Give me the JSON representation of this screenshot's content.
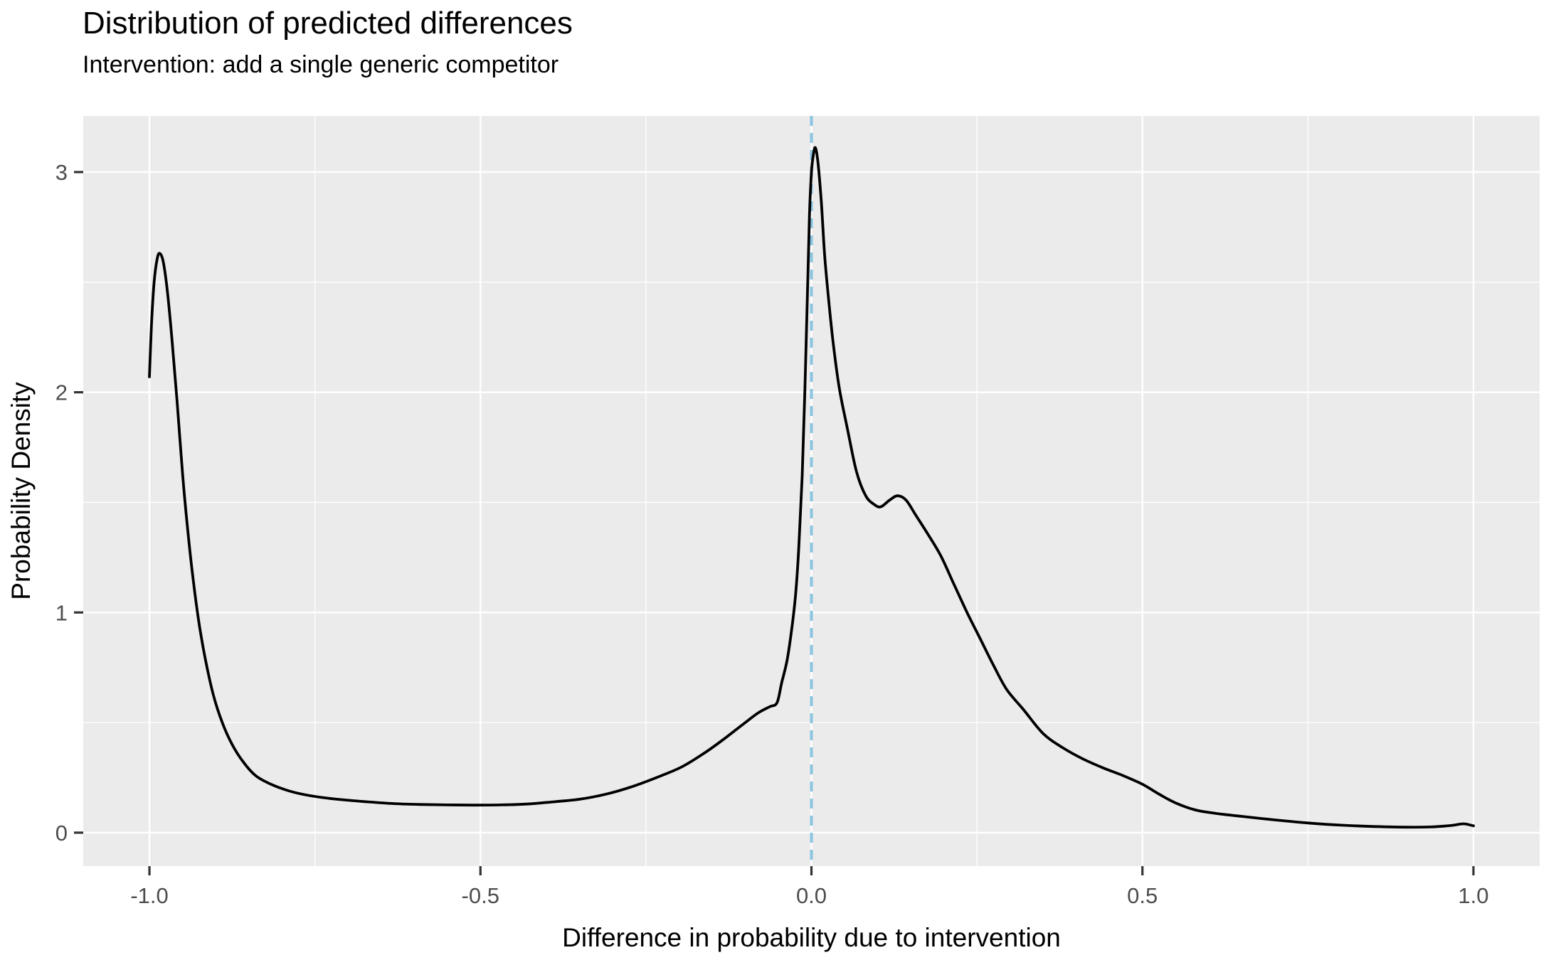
{
  "chart_data": {
    "type": "line",
    "subtype": "density",
    "title": "Distribution of predicted differences",
    "subtitle": "Intervention: add a single generic competitor",
    "xlabel": "Difference in probability due to intervention",
    "ylabel": "Probability Density",
    "xlim": [
      -1.1,
      1.1
    ],
    "ylim": [
      -0.152,
      3.255
    ],
    "x_ticks": [
      -1.0,
      -0.5,
      0.0,
      0.5,
      1.0
    ],
    "x_tick_labels": [
      "-1.0",
      "-0.5",
      "0.0",
      "0.5",
      "1.0"
    ],
    "y_ticks": [
      0,
      1,
      2,
      3
    ],
    "y_tick_labels": [
      "0",
      "1",
      "2",
      "3"
    ],
    "x_minor": [
      -0.75,
      -0.25,
      0.25,
      0.75
    ],
    "y_minor": [
      0.5,
      1.5,
      2.5
    ],
    "grid": true,
    "legend_position": "none",
    "panel_bg": "#EBEBEB",
    "grid_color": "#FFFFFF",
    "tick_label_color": "#4D4D4D",
    "tick_mark_color": "#333333",
    "axis_title_color": "#000000",
    "line_color": "#000000",
    "vline": {
      "x": 0.0,
      "style": "dashed",
      "color": "#89C4E1"
    },
    "series": [
      {
        "name": "predicted-difference-density",
        "points": [
          [
            -1.0,
            2.07
          ],
          [
            -0.997,
            2.3
          ],
          [
            -0.993,
            2.5
          ],
          [
            -0.988,
            2.61
          ],
          [
            -0.984,
            2.63
          ],
          [
            -0.979,
            2.59
          ],
          [
            -0.973,
            2.46
          ],
          [
            -0.966,
            2.24
          ],
          [
            -0.958,
            1.95
          ],
          [
            -0.95,
            1.63
          ],
          [
            -0.942,
            1.37
          ],
          [
            -0.934,
            1.15
          ],
          [
            -0.925,
            0.95
          ],
          [
            -0.915,
            0.78
          ],
          [
            -0.903,
            0.62
          ],
          [
            -0.89,
            0.5
          ],
          [
            -0.875,
            0.4
          ],
          [
            -0.858,
            0.32
          ],
          [
            -0.84,
            0.26
          ],
          [
            -0.82,
            0.225
          ],
          [
            -0.795,
            0.195
          ],
          [
            -0.77,
            0.175
          ],
          [
            -0.74,
            0.16
          ],
          [
            -0.71,
            0.15
          ],
          [
            -0.67,
            0.14
          ],
          [
            -0.63,
            0.132
          ],
          [
            -0.59,
            0.128
          ],
          [
            -0.55,
            0.126
          ],
          [
            -0.51,
            0.125
          ],
          [
            -0.47,
            0.126
          ],
          [
            -0.43,
            0.13
          ],
          [
            -0.39,
            0.14
          ],
          [
            -0.35,
            0.152
          ],
          [
            -0.31,
            0.175
          ],
          [
            -0.27,
            0.21
          ],
          [
            -0.23,
            0.255
          ],
          [
            -0.195,
            0.3
          ],
          [
            -0.16,
            0.365
          ],
          [
            -0.13,
            0.43
          ],
          [
            -0.1,
            0.5
          ],
          [
            -0.08,
            0.545
          ],
          [
            -0.063,
            0.572
          ],
          [
            -0.052,
            0.59
          ],
          [
            -0.045,
            0.68
          ],
          [
            -0.037,
            0.78
          ],
          [
            -0.03,
            0.92
          ],
          [
            -0.024,
            1.08
          ],
          [
            -0.019,
            1.3
          ],
          [
            -0.014,
            1.62
          ],
          [
            -0.01,
            2.0
          ],
          [
            -0.006,
            2.45
          ],
          [
            -0.003,
            2.8
          ],
          [
            0.0,
            3.0
          ],
          [
            0.003,
            3.08
          ],
          [
            0.006,
            3.11
          ],
          [
            0.01,
            3.04
          ],
          [
            0.015,
            2.86
          ],
          [
            0.02,
            2.62
          ],
          [
            0.026,
            2.42
          ],
          [
            0.033,
            2.22
          ],
          [
            0.042,
            2.02
          ],
          [
            0.054,
            1.84
          ],
          [
            0.068,
            1.64
          ],
          [
            0.082,
            1.53
          ],
          [
            0.095,
            1.49
          ],
          [
            0.105,
            1.48
          ],
          [
            0.118,
            1.51
          ],
          [
            0.13,
            1.53
          ],
          [
            0.143,
            1.51
          ],
          [
            0.158,
            1.44
          ],
          [
            0.175,
            1.36
          ],
          [
            0.195,
            1.26
          ],
          [
            0.215,
            1.13
          ],
          [
            0.235,
            1.0
          ],
          [
            0.255,
            0.88
          ],
          [
            0.275,
            0.76
          ],
          [
            0.295,
            0.65
          ],
          [
            0.32,
            0.56
          ],
          [
            0.35,
            0.45
          ],
          [
            0.38,
            0.385
          ],
          [
            0.41,
            0.335
          ],
          [
            0.44,
            0.295
          ],
          [
            0.47,
            0.26
          ],
          [
            0.5,
            0.22
          ],
          [
            0.525,
            0.175
          ],
          [
            0.55,
            0.135
          ],
          [
            0.58,
            0.103
          ],
          [
            0.61,
            0.088
          ],
          [
            0.65,
            0.074
          ],
          [
            0.7,
            0.058
          ],
          [
            0.75,
            0.044
          ],
          [
            0.8,
            0.034
          ],
          [
            0.85,
            0.028
          ],
          [
            0.9,
            0.025
          ],
          [
            0.935,
            0.026
          ],
          [
            0.965,
            0.032
          ],
          [
            0.985,
            0.04
          ],
          [
            1.0,
            0.031
          ]
        ]
      }
    ]
  }
}
